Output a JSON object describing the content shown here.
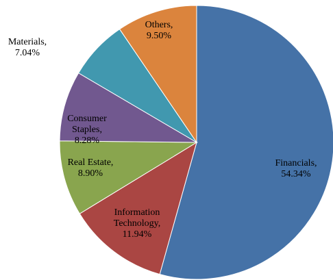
{
  "chart_data": {
    "type": "pie",
    "categories": [
      "Financials,",
      "Information Technology,",
      "Real Estate,",
      "Consumer Staples,",
      "Materials,",
      "Others,"
    ],
    "values": [
      54.34,
      11.94,
      8.9,
      8.28,
      7.04,
      9.5
    ],
    "value_labels": [
      "54.34%",
      "11.94%",
      "8.90%",
      "8.28%",
      "7.04%",
      "9.50%"
    ],
    "colors": [
      "#4572a7",
      "#aa4643",
      "#89a54e",
      "#71588f",
      "#4198af",
      "#db843d"
    ]
  }
}
